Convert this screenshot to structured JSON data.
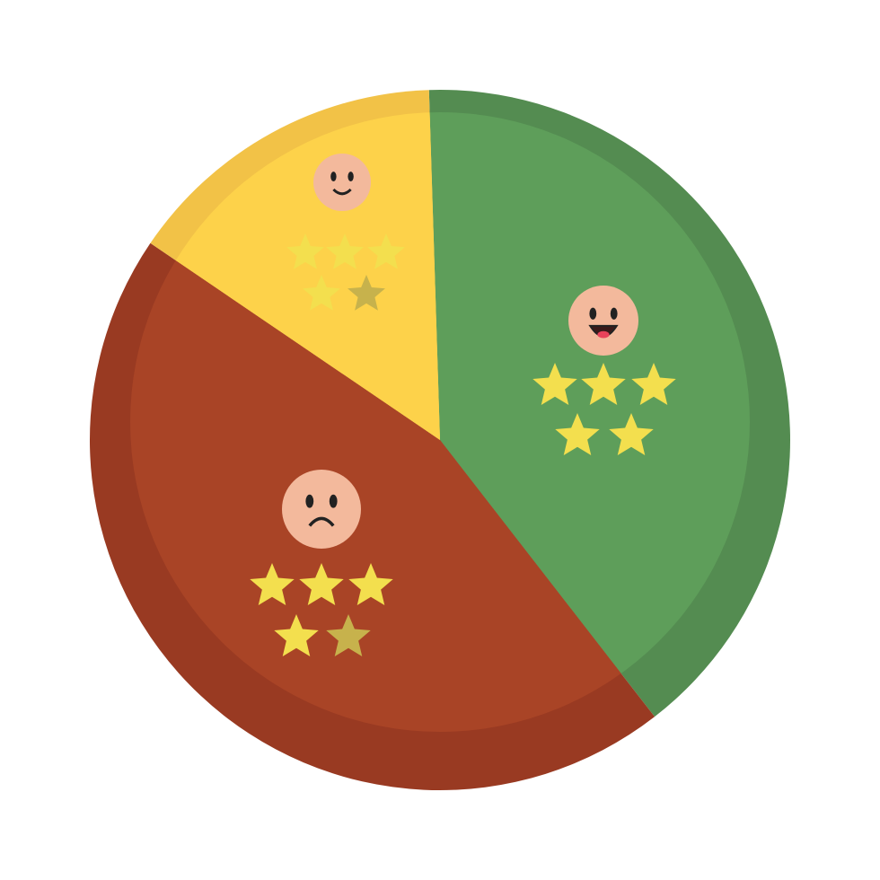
{
  "chart_data": {
    "type": "pie",
    "categories": [
      null,
      null,
      null
    ],
    "values": [
      40,
      45,
      15
    ],
    "colors": [
      "#5e9e5a",
      "#a94426",
      "#fdd24a"
    ],
    "rim_colors": [
      "#548c51",
      "#993a22",
      "#f2c247"
    ]
  }
}
